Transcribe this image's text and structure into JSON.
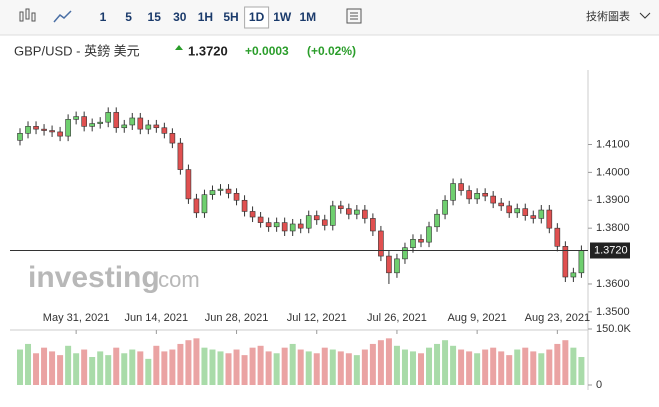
{
  "toolbar": {
    "intervals": [
      "1",
      "5",
      "15",
      "30",
      "1H",
      "5H",
      "1D",
      "1W",
      "1M"
    ],
    "active": "1D",
    "technical_charts": "技術圖表"
  },
  "instrument": {
    "name": "GBP/USD - 英鎊 美元",
    "price": "1.3720",
    "change": "+0.0003",
    "change_pct": "(+0.02%)"
  },
  "watermark": {
    "brand": "investing",
    "suffix": ".com"
  },
  "chart_data": {
    "type": "candlestick",
    "up_color": "#6fcf6f",
    "down_color": "#e05050",
    "volume_up_color": "#a9dba9",
    "volume_down_color": "#eaa3a3",
    "categories": [
      null,
      null,
      null,
      null,
      null,
      null,
      null,
      "May 31, 2021",
      null,
      null,
      null,
      null,
      null,
      null,
      null,
      null,
      null,
      "Jun 14, 2021",
      null,
      null,
      null,
      null,
      null,
      null,
      null,
      null,
      null,
      "Jun 28, 2021",
      null,
      null,
      null,
      null,
      null,
      null,
      null,
      null,
      null,
      "Jul 12, 2021",
      null,
      null,
      null,
      null,
      null,
      null,
      null,
      null,
      null,
      "Jul 26, 2021",
      null,
      null,
      null,
      null,
      null,
      null,
      null,
      null,
      null,
      "Aug 9, 2021",
      null,
      null,
      null,
      null,
      null,
      null,
      null,
      null,
      null,
      "Aug 23, 2021",
      null,
      null,
      null
    ],
    "open": [
      1.4115,
      1.414,
      1.4165,
      1.4155,
      1.415,
      1.4145,
      1.413,
      1.419,
      1.42,
      1.4165,
      1.4175,
      1.418,
      1.4215,
      1.416,
      1.417,
      1.4195,
      1.4155,
      1.417,
      1.416,
      1.414,
      1.4105,
      1.401,
      1.3905,
      1.3855,
      1.392,
      1.3935,
      1.394,
      1.3925,
      1.39,
      1.386,
      1.384,
      1.382,
      1.3805,
      1.382,
      1.379,
      1.3815,
      1.38,
      1.3845,
      1.383,
      1.381,
      1.388,
      1.387,
      1.385,
      1.3865,
      1.3835,
      1.379,
      1.37,
      1.364,
      1.369,
      1.373,
      1.376,
      1.375,
      1.3805,
      1.385,
      1.39,
      1.396,
      1.3935,
      1.3905,
      1.3925,
      1.3915,
      1.389,
      1.388,
      1.3855,
      1.387,
      1.3845,
      1.3835,
      1.3865,
      1.38,
      1.3735,
      1.3625,
      1.364
    ],
    "high": [
      1.4158,
      1.4183,
      1.4183,
      1.4173,
      1.4168,
      1.4163,
      1.4208,
      1.4218,
      1.4218,
      1.4193,
      1.4198,
      1.4233,
      1.4233,
      1.4188,
      1.4213,
      1.4213,
      1.4188,
      1.4188,
      1.4178,
      1.4158,
      1.4123,
      1.4028,
      1.3923,
      1.3938,
      1.3953,
      1.3958,
      1.3958,
      1.3943,
      1.3918,
      1.3878,
      1.3858,
      1.3838,
      1.3838,
      1.3838,
      1.3833,
      1.3833,
      1.3863,
      1.3863,
      1.3848,
      1.3898,
      1.3898,
      1.3888,
      1.3883,
      1.3883,
      1.3853,
      1.3808,
      1.3718,
      1.3708,
      1.3748,
      1.3778,
      1.3778,
      1.3823,
      1.3868,
      1.3918,
      1.3978,
      1.3978,
      1.3953,
      1.3943,
      1.3943,
      1.3933,
      1.3908,
      1.3898,
      1.3888,
      1.3888,
      1.3863,
      1.3883,
      1.3883,
      1.3818,
      1.3753,
      1.3658,
      1.3738
    ],
    "low": [
      1.4097,
      1.4122,
      1.4137,
      1.4132,
      1.4127,
      1.4112,
      1.4112,
      1.4172,
      1.4147,
      1.4147,
      1.4157,
      1.4162,
      1.4142,
      1.4142,
      1.4152,
      1.4137,
      1.4137,
      1.4142,
      1.4122,
      1.4087,
      1.3992,
      1.3887,
      1.3837,
      1.3837,
      1.3902,
      1.3917,
      1.3907,
      1.3882,
      1.3842,
      1.3822,
      1.3802,
      1.3787,
      1.3787,
      1.3772,
      1.3772,
      1.3782,
      1.3782,
      1.3812,
      1.3792,
      1.3792,
      1.3852,
      1.3832,
      1.3832,
      1.3817,
      1.3772,
      1.3682,
      1.36,
      1.3622,
      1.3672,
      1.3712,
      1.3732,
      1.3732,
      1.3787,
      1.3832,
      1.3882,
      1.3917,
      1.3887,
      1.3887,
      1.3897,
      1.3872,
      1.3862,
      1.3837,
      1.3837,
      1.3827,
      1.3817,
      1.3817,
      1.3782,
      1.3717,
      1.3607,
      1.3607,
      1.3622
    ],
    "close": [
      1.414,
      1.4165,
      1.4155,
      1.415,
      1.4145,
      1.413,
      1.419,
      1.42,
      1.4165,
      1.4175,
      1.418,
      1.4215,
      1.416,
      1.417,
      1.4195,
      1.4155,
      1.417,
      1.416,
      1.414,
      1.4105,
      1.401,
      1.3905,
      1.3855,
      1.392,
      1.3935,
      1.394,
      1.3925,
      1.39,
      1.386,
      1.384,
      1.382,
      1.3805,
      1.382,
      1.379,
      1.3815,
      1.38,
      1.3845,
      1.383,
      1.381,
      1.388,
      1.387,
      1.385,
      1.3865,
      1.3835,
      1.379,
      1.37,
      1.364,
      1.369,
      1.373,
      1.376,
      1.375,
      1.3805,
      1.385,
      1.39,
      1.396,
      1.3935,
      1.3905,
      1.3925,
      1.3915,
      1.389,
      1.388,
      1.3855,
      1.387,
      1.3845,
      1.3835,
      1.3865,
      1.38,
      1.3735,
      1.3625,
      1.364,
      1.372
    ],
    "volume": [
      95000,
      110000,
      85000,
      100000,
      90000,
      80000,
      105000,
      85000,
      95000,
      75000,
      90000,
      80000,
      100000,
      85000,
      95000,
      90000,
      70000,
      105000,
      90000,
      95000,
      110000,
      120000,
      125000,
      100000,
      95000,
      90000,
      85000,
      95000,
      80000,
      100000,
      105000,
      90000,
      85000,
      100000,
      110000,
      95000,
      90000,
      85000,
      100000,
      95000,
      90000,
      85000,
      80000,
      95000,
      110000,
      120000,
      125000,
      105000,
      95000,
      90000,
      85000,
      100000,
      110000,
      120000,
      105000,
      95000,
      90000,
      85000,
      95000,
      100000,
      90000,
      80000,
      95000,
      100000,
      90000,
      85000,
      95000,
      110000,
      120000,
      100000,
      75000
    ],
    "ylim": [
      1.3435,
      1.4367
    ],
    "yticks": [
      {
        "value": 1.35,
        "label": "1.3500"
      },
      {
        "value": 1.36,
        "label": "1.3600"
      },
      {
        "value": 1.38,
        "label": "1.3800"
      },
      {
        "value": 1.39,
        "label": "1.3900"
      },
      {
        "value": 1.4,
        "label": "1.4000"
      },
      {
        "value": 1.41,
        "label": "1.4100"
      }
    ],
    "last_price": {
      "value": 1.372,
      "label": "1.3720"
    },
    "volume_lim": [
      0,
      150000
    ],
    "volume_ticks": [
      {
        "value": 150000,
        "label": "150.0K"
      },
      0
    ]
  }
}
